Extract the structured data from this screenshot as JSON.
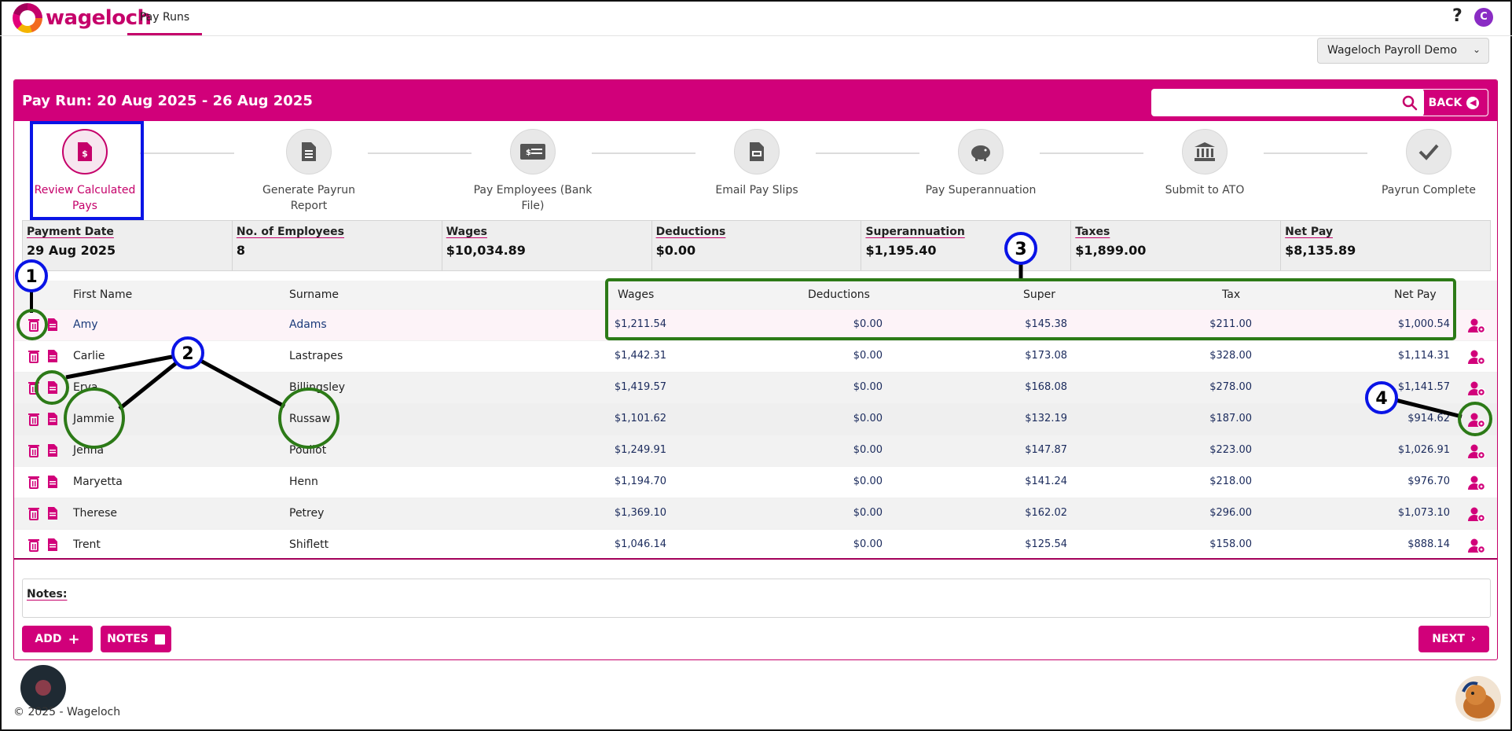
{
  "brand": {
    "name": "wageloch",
    "color": "#c5006a"
  },
  "nav": {
    "tab": "Pay Runs",
    "help": "?",
    "user_initial": "C"
  },
  "company": {
    "selected": "Wageloch Payroll Demo"
  },
  "payrun": {
    "title": "Pay Run:  20 Aug 2025 - 26 Aug 2025",
    "search_placeholder": "",
    "back_label": "BACK"
  },
  "steps": [
    {
      "label": "Review Calculated Pays",
      "icon": "pay-doc-icon",
      "active": true
    },
    {
      "label": "Generate Payrun Report",
      "icon": "report-icon",
      "active": false
    },
    {
      "label": "Pay Employees (Bank File)",
      "icon": "cheque-icon",
      "active": false
    },
    {
      "label": "Email Pay Slips",
      "icon": "payslip-icon",
      "active": false
    },
    {
      "label": "Pay Superannuation",
      "icon": "piggy-bank-icon",
      "active": false
    },
    {
      "label": "Submit to ATO",
      "icon": "bank-icon",
      "active": false
    },
    {
      "label": "Payrun Complete",
      "icon": "check-icon",
      "active": false
    }
  ],
  "summary": {
    "payment_date": {
      "label": "Payment Date",
      "value": "29 Aug 2025"
    },
    "employees": {
      "label": "No. of Employees",
      "value": "8"
    },
    "wages": {
      "label": "Wages",
      "value": "$10,034.89"
    },
    "deductions": {
      "label": "Deductions",
      "value": "$0.00"
    },
    "super": {
      "label": "Superannuation",
      "value": "$1,195.40"
    },
    "taxes": {
      "label": "Taxes",
      "value": "$1,899.00"
    },
    "net": {
      "label": "Net Pay",
      "value": "$8,135.89"
    }
  },
  "table": {
    "headers": {
      "first": "First Name",
      "surname": "Surname",
      "wages": "Wages",
      "deductions": "Deductions",
      "super": "Super",
      "tax": "Tax",
      "net": "Net Pay"
    },
    "rows": [
      {
        "first": "Amy",
        "surname": "Adams",
        "wages": "$1,211.54",
        "deductions": "$0.00",
        "super": "$145.38",
        "tax": "$211.00",
        "net": "$1,000.54"
      },
      {
        "first": "Carlie",
        "surname": "Lastrapes",
        "wages": "$1,442.31",
        "deductions": "$0.00",
        "super": "$173.08",
        "tax": "$328.00",
        "net": "$1,114.31"
      },
      {
        "first": "Erva",
        "surname": "Billingsley",
        "wages": "$1,419.57",
        "deductions": "$0.00",
        "super": "$168.08",
        "tax": "$278.00",
        "net": "$1,141.57"
      },
      {
        "first": "Jammie",
        "surname": "Russaw",
        "wages": "$1,101.62",
        "deductions": "$0.00",
        "super": "$132.19",
        "tax": "$187.00",
        "net": "$914.62"
      },
      {
        "first": "Jenna",
        "surname": "Poullot",
        "wages": "$1,249.91",
        "deductions": "$0.00",
        "super": "$147.87",
        "tax": "$223.00",
        "net": "$1,026.91"
      },
      {
        "first": "Maryetta",
        "surname": "Henn",
        "wages": "$1,194.70",
        "deductions": "$0.00",
        "super": "$141.24",
        "tax": "$218.00",
        "net": "$976.70"
      },
      {
        "first": "Therese",
        "surname": "Petrey",
        "wages": "$1,369.10",
        "deductions": "$0.00",
        "super": "$162.02",
        "tax": "$296.00",
        "net": "$1,073.10"
      },
      {
        "first": "Trent",
        "surname": "Shiflett",
        "wages": "$1,046.14",
        "deductions": "$0.00",
        "super": "$125.54",
        "tax": "$158.00",
        "net": "$888.14"
      }
    ]
  },
  "notes": {
    "label": "Notes:"
  },
  "actions": {
    "add": "ADD",
    "notes": "NOTES",
    "next": "NEXT"
  },
  "footer": "© 2025 - Wageloch",
  "annotations": [
    "1",
    "2",
    "3",
    "4"
  ]
}
